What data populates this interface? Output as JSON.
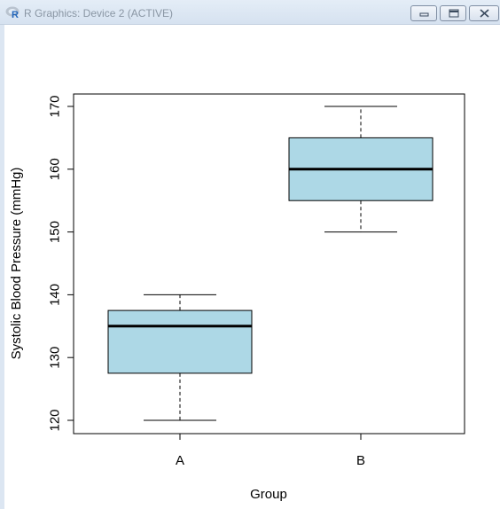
{
  "window": {
    "title": "R Graphics: Device 2 (ACTIVE)",
    "logo_text": "R"
  },
  "chart_data": {
    "type": "boxplot",
    "title": "",
    "xlabel": "Group",
    "ylabel": "Systolic Blood Pressure (mmHg)",
    "categories": [
      "A",
      "B"
    ],
    "boxes": [
      {
        "category": "A",
        "min": 120,
        "q1": 127.5,
        "median": 135,
        "q3": 137.5,
        "max": 140
      },
      {
        "category": "B",
        "min": 150,
        "q1": 155,
        "median": 160,
        "q3": 165,
        "max": 170
      }
    ],
    "yticks": [
      120,
      130,
      140,
      150,
      160,
      170
    ],
    "ylim": [
      118,
      172
    ],
    "box_color": "#add8e6",
    "grid": false,
    "legend": "none"
  }
}
